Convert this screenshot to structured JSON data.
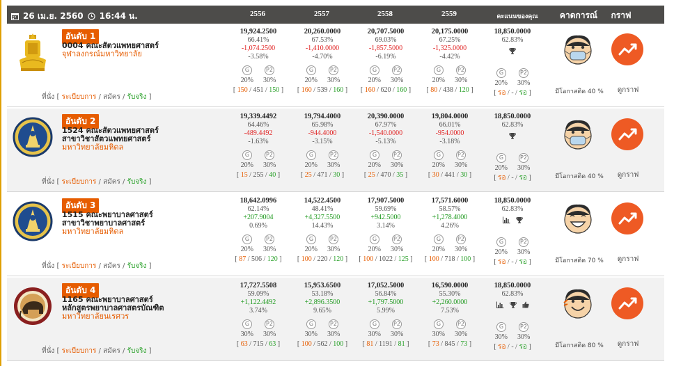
{
  "header": {
    "date": "26 เม.ย. 2560",
    "time": "16:44 น.",
    "years": [
      "2556",
      "2557",
      "2558",
      "2559"
    ],
    "score_col": "คะแนนของคุณ",
    "predict_col": "คาดการณ์",
    "graph_col": "กราฟ"
  },
  "links": {
    "label": "ที่นั่ง",
    "rules": "ระเบียบการ",
    "apply": "สมัคร",
    "accepted": "รับจริง"
  },
  "icons": {
    "G": "G",
    "P2": "P2"
  },
  "rows": [
    {
      "rank": "อันดับ 1",
      "faculty": "0004 คณะสัตวแพทยศาสตร์",
      "program": "",
      "university": "จุฬาลงกรณ์มหาวิทยาลัย",
      "logo": "chula-logo-icon",
      "years": [
        {
          "score": "19,924.2500",
          "pct": "66.41%",
          "diff": "-1,074.2500",
          "diff_pct": "-3.58%",
          "g": "20%",
          "p2": "30%",
          "seats": "150",
          "apply": "451",
          "accept": "150"
        },
        {
          "score": "20,260.0000",
          "pct": "67.53%",
          "diff": "-1,410.0000",
          "diff_pct": "-4.70%",
          "g": "20%",
          "p2": "30%",
          "seats": "160",
          "apply": "539",
          "accept": "160"
        },
        {
          "score": "20,707.5000",
          "pct": "69.03%",
          "diff": "-1,857.5000",
          "diff_pct": "-6.19%",
          "g": "20%",
          "p2": "30%",
          "seats": "160",
          "apply": "620",
          "accept": "160"
        },
        {
          "score": "20,175.0000",
          "pct": "67.25%",
          "diff": "-1,325.0000",
          "diff_pct": "-4.42%",
          "g": "20%",
          "p2": "30%",
          "seats": "80",
          "apply": "438",
          "accept": "120"
        }
      ],
      "user": {
        "score": "18,850.0000",
        "pct": "62.83%",
        "g": "20%",
        "p2": "30%",
        "seats": "รอ",
        "apply": "-",
        "accept": "รอ"
      },
      "status_icons": [
        "trophy-icon"
      ],
      "chance": "มีโอกาสติด 40 %",
      "face": "mask",
      "graph": "ดูกราฟ"
    },
    {
      "rank": "อันดับ 2",
      "faculty": "1524 คณะสัตวแพทยศาสตร์",
      "program": "สาขาวิชาสัตวแพทยศาสตร์",
      "university": "มหาวิทยาลัยมหิดล",
      "logo": "mahidol-logo-icon",
      "years": [
        {
          "score": "19,339.4492",
          "pct": "64.46%",
          "diff": "-489.4492",
          "diff_pct": "-1.63%",
          "g": "20%",
          "p2": "30%",
          "seats": "15",
          "apply": "255",
          "accept": "40"
        },
        {
          "score": "19,794.4000",
          "pct": "65.98%",
          "diff": "-944.4000",
          "diff_pct": "-3.15%",
          "g": "20%",
          "p2": "30%",
          "seats": "25",
          "apply": "471",
          "accept": "30"
        },
        {
          "score": "20,390.0000",
          "pct": "67.97%",
          "diff": "-1,540.0000",
          "diff_pct": "-5.13%",
          "g": "20%",
          "p2": "30%",
          "seats": "25",
          "apply": "470",
          "accept": "35"
        },
        {
          "score": "19,804.0000",
          "pct": "66.01%",
          "diff": "-954.0000",
          "diff_pct": "-3.18%",
          "g": "20%",
          "p2": "30%",
          "seats": "30",
          "apply": "441",
          "accept": "30"
        }
      ],
      "user": {
        "score": "18,850.0000",
        "pct": "62.83%",
        "g": "20%",
        "p2": "30%",
        "seats": "รอ",
        "apply": "-",
        "accept": "รอ"
      },
      "status_icons": [
        "trophy-icon"
      ],
      "chance": "มีโอกาสติด 40 %",
      "face": "mask",
      "graph": "ดูกราฟ"
    },
    {
      "rank": "อันดับ 3",
      "faculty": "1515 คณะพยาบาลศาสตร์",
      "program": "สาขาวิชาพยาบาลศาสตร์",
      "university": "มหาวิทยาลัยมหิดล",
      "logo": "mahidol-logo-icon",
      "years": [
        {
          "score": "18,642.0996",
          "pct": "62.14%",
          "diff": "+207.9004",
          "diff_pct": "0.69%",
          "g": "20%",
          "p2": "30%",
          "seats": "87",
          "apply": "506",
          "accept": "120"
        },
        {
          "score": "14,522.4500",
          "pct": "48.41%",
          "diff": "+4,327.5500",
          "diff_pct": "14.43%",
          "g": "20%",
          "p2": "30%",
          "seats": "100",
          "apply": "220",
          "accept": "120"
        },
        {
          "score": "17,907.5000",
          "pct": "59.69%",
          "diff": "+942.5000",
          "diff_pct": "3.14%",
          "g": "20%",
          "p2": "30%",
          "seats": "100",
          "apply": "1022",
          "accept": "125"
        },
        {
          "score": "17,571.6000",
          "pct": "58.57%",
          "diff": "+1,278.4000",
          "diff_pct": "4.26%",
          "g": "20%",
          "p2": "30%",
          "seats": "100",
          "apply": "718",
          "accept": "100"
        }
      ],
      "user": {
        "score": "18,850.0000",
        "pct": "62.83%",
        "g": "20%",
        "p2": "30%",
        "seats": "รอ",
        "apply": "-",
        "accept": "รอ"
      },
      "status_icons": [
        "bar-chart-icon",
        "trophy-icon"
      ],
      "chance": "มีโอกาสติด 70 %",
      "face": "laugh",
      "graph": "ดูกราฟ"
    },
    {
      "rank": "อันดับ 4",
      "faculty": "1165 คณะพยาบาลศาสตร์",
      "program": "หลักสูตรพยาบาลศาสตรบัณฑิต",
      "university": "มหาวิทยาลัยนเรศวร",
      "logo": "naresuan-logo-icon",
      "years": [
        {
          "score": "17,727.5508",
          "pct": "59.09%",
          "diff": "+1,122.4492",
          "diff_pct": "3.74%",
          "g": "30%",
          "p2": "30%",
          "seats": "63",
          "apply": "715",
          "accept": "63"
        },
        {
          "score": "15,953.6500",
          "pct": "53.18%",
          "diff": "+2,896.3500",
          "diff_pct": "9.65%",
          "g": "30%",
          "p2": "30%",
          "seats": "100",
          "apply": "562",
          "accept": "100"
        },
        {
          "score": "17,052.5000",
          "pct": "56.84%",
          "diff": "+1,797.5000",
          "diff_pct": "5.99%",
          "g": "30%",
          "p2": "30%",
          "seats": "81",
          "apply": "1191",
          "accept": "81"
        },
        {
          "score": "16,590.0000",
          "pct": "55.30%",
          "diff": "+2,260.0000",
          "diff_pct": "7.53%",
          "g": "30%",
          "p2": "30%",
          "seats": "73",
          "apply": "845",
          "accept": "73"
        }
      ],
      "user": {
        "score": "18,850.0000",
        "pct": "62.83%",
        "g": "30%",
        "p2": "30%",
        "seats": "รอ",
        "apply": "-",
        "accept": "รอ"
      },
      "status_icons": [
        "bar-chart-icon",
        "trophy-icon",
        "thumbs-up-icon"
      ],
      "chance": "มีโอกาสติด 80 %",
      "face": "smile",
      "graph": "ดูกราฟ"
    }
  ],
  "colors": {
    "header_bg": "#4d4c4a",
    "accent": "#e65c00",
    "positive": "#1f9a1f",
    "negative": "#e02020",
    "graph_button": "#ee5a24"
  }
}
